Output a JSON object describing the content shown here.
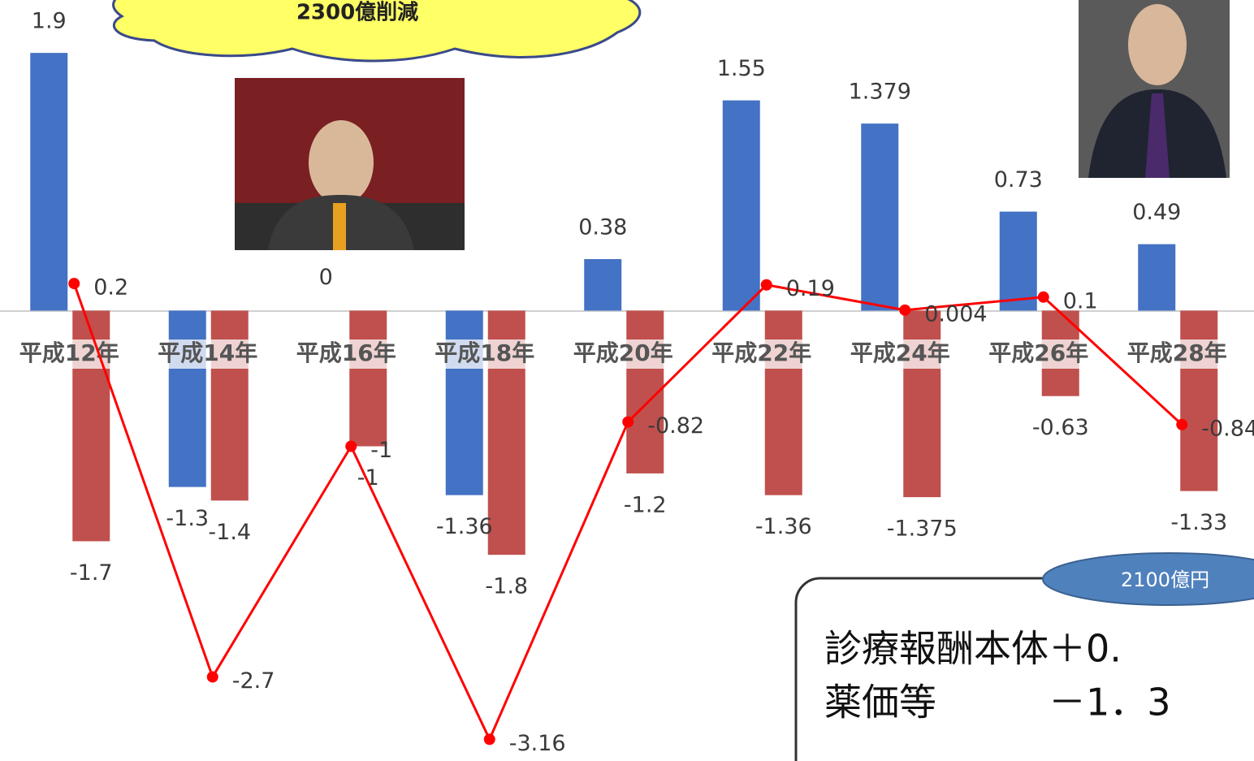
{
  "chart_data": {
    "type": "bar",
    "categories": [
      "平成12年",
      "平成14年",
      "平成16年",
      "平成18年",
      "平成20年",
      "平成22年",
      "平成24年",
      "平成26年",
      "平成28年"
    ],
    "series": [
      {
        "color": "#4472c4",
        "values": [
          1.9,
          -1.3,
          0,
          -1.36,
          0.38,
          1.55,
          1.379,
          0.73,
          0.49
        ]
      },
      {
        "color": "#c0504d",
        "values": [
          -1.7,
          -1.4,
          -1,
          -1.8,
          -1.2,
          -1.36,
          -1.375,
          -0.63,
          -1.33
        ]
      },
      {
        "type": "line",
        "color": "#ff0000",
        "values": [
          0.2,
          -2.7,
          -1,
          -3.16,
          -0.82,
          0.19,
          0.004,
          0.1,
          -0.84
        ]
      }
    ],
    "ylim": [
      -3.32,
      2.29
    ],
    "grid": false,
    "annotations": {
      "cloud": "2300億削減",
      "badge": "2100億円",
      "box_line_1": "診療報酬本体＋0.",
      "box_line_2": "薬価等　　　－1．3"
    }
  }
}
